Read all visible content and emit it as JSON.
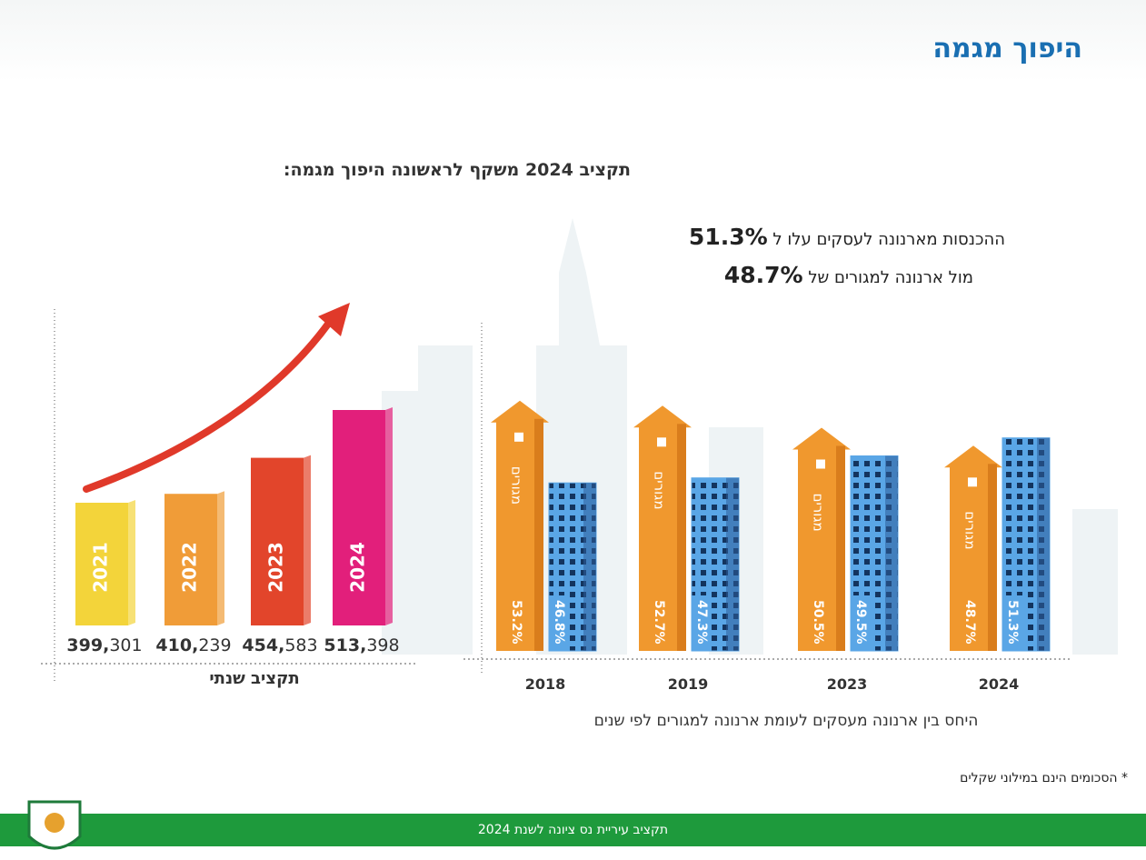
{
  "header": {
    "title": "היפוך מגמה"
  },
  "summary": {
    "title": "תקציב 2024 משקף לראשונה היפוך מגמה:",
    "lines": [
      {
        "text": "ההכנסות מארנונה לעסקים עלו ל",
        "value": "51.3%"
      },
      {
        "text": "מול ארנונה למגורים  של",
        "value": "48.7%"
      }
    ]
  },
  "chart_data": [
    {
      "type": "bar",
      "x_label": "תקציב שנתי",
      "categories": [
        "2021",
        "2022",
        "2023",
        "2024"
      ],
      "values": [
        399301,
        410239,
        454583,
        513398
      ],
      "value_labels": [
        "399,301",
        "410,239",
        "454,583",
        "513,398"
      ],
      "colors": [
        "#f3d43a",
        "#f09c38",
        "#e2452b",
        "#e21f7b"
      ]
    },
    {
      "type": "grouped_bar",
      "title": "היחס בין ארנונה מעסקים לעומת ארנונה למגורים לפי שנים",
      "categories": [
        "2018",
        "2019",
        "2023",
        "2024"
      ],
      "series": [
        {
          "name": "מגורים",
          "color": "#f0982e",
          "values": [
            53.2,
            52.7,
            50.5,
            48.7
          ],
          "value_labels": [
            "53.2%",
            "52.7%",
            "50.5%",
            "48.7%"
          ]
        },
        {
          "color": "#5aa6e6",
          "values": [
            46.8,
            47.3,
            49.5,
            51.3
          ],
          "value_labels": [
            "46.8%",
            "47.3%",
            "49.5%",
            "51.3%"
          ]
        }
      ]
    }
  ],
  "note": "* הסכומים הינם במילוני שקלים",
  "footer": "תקציב עיריית נס ציונה לשנת 2024"
}
